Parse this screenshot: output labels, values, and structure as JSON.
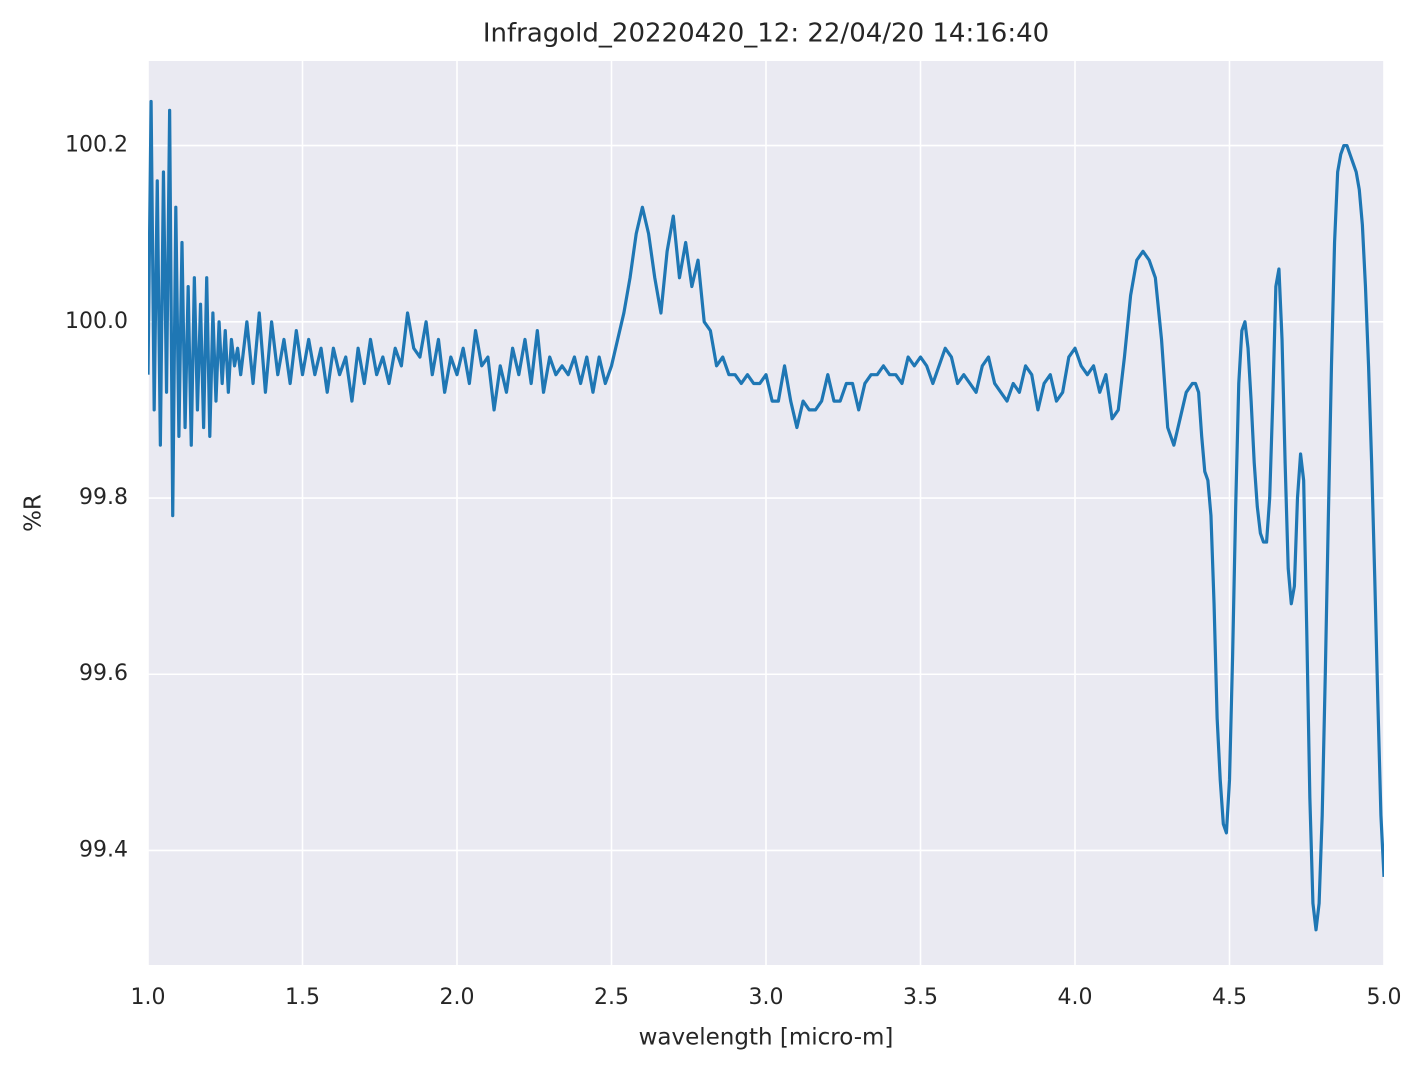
{
  "chart_data": {
    "type": "line",
    "title": "Infragold_20220420_12:  22/04/20 14:16:40",
    "x_label": "wavelength [micro-m]",
    "y_label": "%R",
    "xlim": [
      1.0,
      5.0
    ],
    "ylim": [
      99.27,
      100.296
    ],
    "xticks": [
      {
        "value": 1,
        "label": "1.0"
      },
      1.5,
      {
        "value": 2,
        "label": "2.0"
      },
      2.5,
      {
        "value": 3,
        "label": "3.0"
      },
      3.5,
      {
        "value": 4,
        "label": "4.0"
      },
      4.5,
      {
        "value": 5,
        "label": "5.0"
      }
    ],
    "yticks": [
      99.4,
      99.6,
      99.8,
      {
        "value": 100,
        "label": "100.0"
      },
      100.2
    ],
    "grid": true,
    "background": "#eaeaf2",
    "x": [
      1.0,
      1.01,
      1.02,
      1.03,
      1.04,
      1.05,
      1.06,
      1.07,
      1.08,
      1.09,
      1.1,
      1.11,
      1.12,
      1.13,
      1.14,
      1.15,
      1.16,
      1.17,
      1.18,
      1.19,
      1.2,
      1.21,
      1.22,
      1.23,
      1.24,
      1.25,
      1.26,
      1.27,
      1.28,
      1.29,
      1.3,
      1.32,
      1.34,
      1.36,
      1.38,
      1.4,
      1.42,
      1.44,
      1.46,
      1.48,
      1.5,
      1.52,
      1.54,
      1.56,
      1.58,
      1.6,
      1.62,
      1.64,
      1.66,
      1.68,
      1.7,
      1.72,
      1.74,
      1.76,
      1.78,
      1.8,
      1.82,
      1.84,
      1.86,
      1.88,
      1.9,
      1.92,
      1.94,
      1.96,
      1.98,
      2.0,
      2.02,
      2.04,
      2.06,
      2.08,
      2.1,
      2.12,
      2.14,
      2.16,
      2.18,
      2.2,
      2.22,
      2.24,
      2.26,
      2.28,
      2.3,
      2.32,
      2.34,
      2.36,
      2.38,
      2.4,
      2.42,
      2.44,
      2.46,
      2.48,
      2.5,
      2.52,
      2.54,
      2.56,
      2.58,
      2.6,
      2.62,
      2.64,
      2.66,
      2.68,
      2.7,
      2.72,
      2.74,
      2.76,
      2.78,
      2.8,
      2.82,
      2.84,
      2.86,
      2.88,
      2.9,
      2.92,
      2.94,
      2.96,
      2.98,
      3.0,
      3.02,
      3.04,
      3.06,
      3.08,
      3.1,
      3.12,
      3.14,
      3.16,
      3.18,
      3.2,
      3.22,
      3.24,
      3.26,
      3.28,
      3.3,
      3.32,
      3.34,
      3.36,
      3.38,
      3.4,
      3.42,
      3.44,
      3.46,
      3.48,
      3.5,
      3.52,
      3.54,
      3.56,
      3.58,
      3.6,
      3.62,
      3.64,
      3.66,
      3.68,
      3.7,
      3.72,
      3.74,
      3.76,
      3.78,
      3.8,
      3.82,
      3.84,
      3.86,
      3.88,
      3.9,
      3.92,
      3.94,
      3.96,
      3.98,
      4.0,
      4.02,
      4.04,
      4.06,
      4.08,
      4.1,
      4.12,
      4.14,
      4.16,
      4.18,
      4.2,
      4.22,
      4.24,
      4.26,
      4.28,
      4.3,
      4.32,
      4.34,
      4.36,
      4.38,
      4.39,
      4.4,
      4.41,
      4.42,
      4.43,
      4.44,
      4.45,
      4.46,
      4.47,
      4.48,
      4.49,
      4.5,
      4.51,
      4.52,
      4.53,
      4.54,
      4.55,
      4.56,
      4.57,
      4.58,
      4.59,
      4.6,
      4.61,
      4.62,
      4.63,
      4.64,
      4.65,
      4.66,
      4.67,
      4.68,
      4.69,
      4.7,
      4.71,
      4.72,
      4.73,
      4.74,
      4.75,
      4.76,
      4.77,
      4.78,
      4.79,
      4.8,
      4.81,
      4.82,
      4.83,
      4.84,
      4.85,
      4.86,
      4.87,
      4.88,
      4.89,
      4.9,
      4.91,
      4.92,
      4.93,
      4.94,
      4.95,
      4.96,
      4.97,
      4.98,
      4.99,
      5.0
    ],
    "series": [
      {
        "color": "#1f77b4",
        "values": [
          99.94,
          100.25,
          99.9,
          100.16,
          99.86,
          100.17,
          99.92,
          100.24,
          99.78,
          100.13,
          99.87,
          100.09,
          99.88,
          100.04,
          99.86,
          100.05,
          99.9,
          100.02,
          99.88,
          100.05,
          99.87,
          100.01,
          99.91,
          100.0,
          99.93,
          99.99,
          99.92,
          99.98,
          99.95,
          99.97,
          99.94,
          100.0,
          99.93,
          100.01,
          99.92,
          100.0,
          99.94,
          99.98,
          99.93,
          99.99,
          99.94,
          99.98,
          99.94,
          99.97,
          99.92,
          99.97,
          99.94,
          99.96,
          99.91,
          99.97,
          99.93,
          99.98,
          99.94,
          99.96,
          99.93,
          99.97,
          99.95,
          100.01,
          99.97,
          99.96,
          100.0,
          99.94,
          99.98,
          99.92,
          99.96,
          99.94,
          99.97,
          99.93,
          99.99,
          99.95,
          99.96,
          99.9,
          99.95,
          99.92,
          99.97,
          99.94,
          99.98,
          99.93,
          99.99,
          99.92,
          99.96,
          99.94,
          99.95,
          99.94,
          99.96,
          99.93,
          99.96,
          99.92,
          99.96,
          99.93,
          99.95,
          99.98,
          100.01,
          100.05,
          100.1,
          100.13,
          100.1,
          100.05,
          100.01,
          100.08,
          100.12,
          100.05,
          100.09,
          100.04,
          100.07,
          100.0,
          99.99,
          99.95,
          99.96,
          99.94,
          99.94,
          99.93,
          99.94,
          99.93,
          99.93,
          99.94,
          99.91,
          99.91,
          99.95,
          99.91,
          99.88,
          99.91,
          99.9,
          99.9,
          99.91,
          99.94,
          99.91,
          99.91,
          99.93,
          99.93,
          99.9,
          99.93,
          99.94,
          99.94,
          99.95,
          99.94,
          99.94,
          99.93,
          99.96,
          99.95,
          99.96,
          99.95,
          99.93,
          99.95,
          99.97,
          99.96,
          99.93,
          99.94,
          99.93,
          99.92,
          99.95,
          99.96,
          99.93,
          99.92,
          99.91,
          99.93,
          99.92,
          99.95,
          99.94,
          99.9,
          99.93,
          99.94,
          99.91,
          99.92,
          99.96,
          99.97,
          99.95,
          99.94,
          99.95,
          99.92,
          99.94,
          99.89,
          99.9,
          99.96,
          100.03,
          100.07,
          100.08,
          100.07,
          100.05,
          99.98,
          99.88,
          99.86,
          99.89,
          99.92,
          99.93,
          99.93,
          99.92,
          99.87,
          99.83,
          99.82,
          99.78,
          99.68,
          99.55,
          99.48,
          99.43,
          99.42,
          99.48,
          99.62,
          99.79,
          99.93,
          99.99,
          100.0,
          99.97,
          99.91,
          99.84,
          99.79,
          99.76,
          99.75,
          99.75,
          99.8,
          99.91,
          100.04,
          100.06,
          99.98,
          99.84,
          99.72,
          99.68,
          99.7,
          99.8,
          99.85,
          99.82,
          99.65,
          99.46,
          99.34,
          99.31,
          99.34,
          99.44,
          99.6,
          99.78,
          99.95,
          100.09,
          100.17,
          100.19,
          100.2,
          100.2,
          100.19,
          100.18,
          100.17,
          100.15,
          100.11,
          100.04,
          99.95,
          99.84,
          99.71,
          99.57,
          99.44,
          99.37
        ]
      }
    ]
  }
}
